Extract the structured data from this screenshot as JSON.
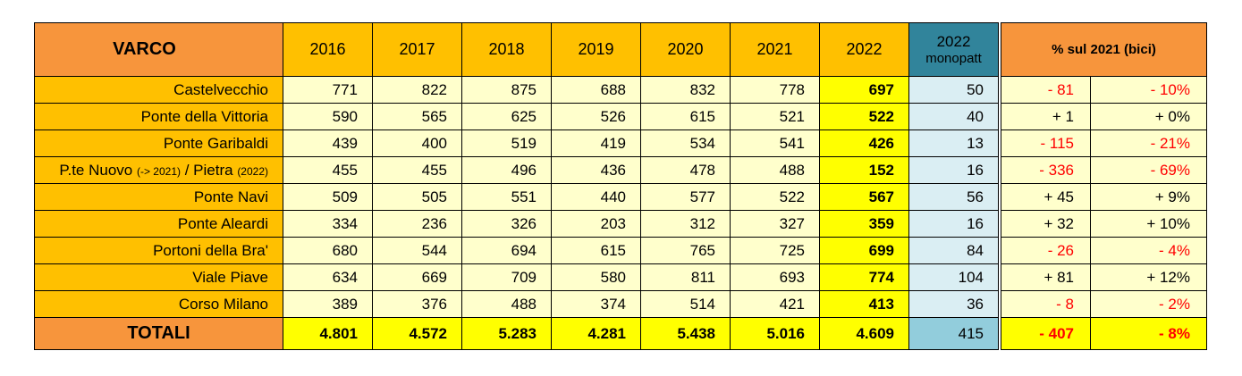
{
  "header": {
    "varco": "VARCO",
    "years": [
      "2016",
      "2017",
      "2018",
      "2019",
      "2020",
      "2021",
      "2022"
    ],
    "mono_year": "2022",
    "mono_label": "monopatt",
    "pct_label": "% sul 2021 (bici)"
  },
  "rows": [
    {
      "name": "Castelvecchio",
      "values": [
        "771",
        "822",
        "875",
        "688",
        "832",
        "778"
      ],
      "v2022": "697",
      "mono": "50",
      "diff": "- 81",
      "pct": "- 10%"
    },
    {
      "name": "Ponte della Vittoria",
      "values": [
        "590",
        "565",
        "625",
        "526",
        "615",
        "521"
      ],
      "v2022": "522",
      "mono": "40",
      "diff": "+ 1",
      "pct": "+ 0%"
    },
    {
      "name": "Ponte Garibaldi",
      "values": [
        "439",
        "400",
        "519",
        "419",
        "534",
        "541"
      ],
      "v2022": "426",
      "mono": "13",
      "diff": "- 115",
      "pct": "- 21%"
    },
    {
      "name_a": "P.te Nuovo ",
      "name_b": "(-> 2021)",
      "name_c": " / Pietra ",
      "name_d": "(2022)",
      "values": [
        "455",
        "455",
        "496",
        "436",
        "478",
        "488"
      ],
      "v2022": "152",
      "mono": "16",
      "diff": "- 336",
      "pct": "- 69%"
    },
    {
      "name": "Ponte Navi",
      "values": [
        "509",
        "505",
        "551",
        "440",
        "577",
        "522"
      ],
      "v2022": "567",
      "mono": "56",
      "diff": "+ 45",
      "pct": "+ 9%"
    },
    {
      "name": "Ponte Aleardi",
      "values": [
        "334",
        "236",
        "326",
        "203",
        "312",
        "327"
      ],
      "v2022": "359",
      "mono": "16",
      "diff": "+ 32",
      "pct": "+ 10%"
    },
    {
      "name": "Portoni della Bra'",
      "values": [
        "680",
        "544",
        "694",
        "615",
        "765",
        "725"
      ],
      "v2022": "699",
      "mono": "84",
      "diff": "- 26",
      "pct": "- 4%"
    },
    {
      "name": "Viale Piave",
      "values": [
        "634",
        "669",
        "709",
        "580",
        "811",
        "693"
      ],
      "v2022": "774",
      "mono": "104",
      "diff": "+ 81",
      "pct": "+ 12%"
    },
    {
      "name": "Corso Milano",
      "values": [
        "389",
        "376",
        "488",
        "374",
        "514",
        "421"
      ],
      "v2022": "413",
      "mono": "36",
      "diff": "- 8",
      "pct": "- 2%"
    }
  ],
  "totals": {
    "label": "TOTALI",
    "values": [
      "4.801",
      "4.572",
      "5.283",
      "4.281",
      "5.438",
      "5.016"
    ],
    "v2022": "4.609",
    "mono": "415",
    "diff": "- 407",
    "pct": "- 8%"
  },
  "colors": {
    "negative": "#ff0000",
    "header_orange": "#f7953c",
    "year_gold": "#ffc000",
    "highlight_yellow": "#ffff00",
    "mono_teal": "#31849b"
  }
}
